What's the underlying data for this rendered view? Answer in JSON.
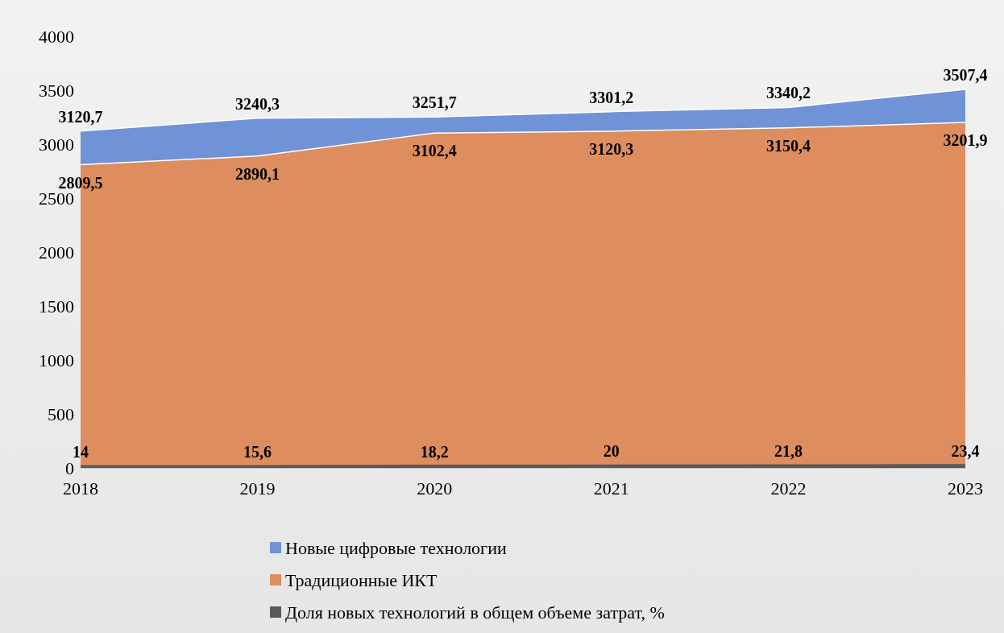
{
  "chart_data": {
    "type": "area",
    "categories": [
      "2018",
      "2019",
      "2020",
      "2021",
      "2022",
      "2023"
    ],
    "series": [
      {
        "name": "Новые цифровые технологии",
        "color": "#6f93d6",
        "values": [
          3120.7,
          3240.3,
          3251.7,
          3301.2,
          3340.2,
          3507.4
        ],
        "value_labels": [
          "3120,7",
          "3240,3",
          "3251,7",
          "3301,2",
          "3340,2",
          "3507,4"
        ]
      },
      {
        "name": "Традиционные ИКТ",
        "color": "#dd8d5e",
        "values": [
          2809.5,
          2890.1,
          3102.4,
          3120.3,
          3150.4,
          3201.9
        ],
        "value_labels": [
          "2809,5",
          "2890,1",
          "3102,4",
          "3120,3",
          "3150,4",
          "3201,9"
        ]
      },
      {
        "name": "Доля новых технологий в общем объеме затрат, %",
        "color": "#595959",
        "values": [
          14,
          15.6,
          18.2,
          20,
          21.8,
          23.4
        ],
        "value_labels": [
          "14",
          "15,6",
          "18,2",
          "20",
          "21,8",
          "23,4"
        ]
      }
    ],
    "ylim": [
      0,
      4000
    ],
    "yticks": [
      0,
      500,
      1000,
      1500,
      2000,
      2500,
      3000,
      3500,
      4000
    ],
    "legend": "bottom"
  }
}
